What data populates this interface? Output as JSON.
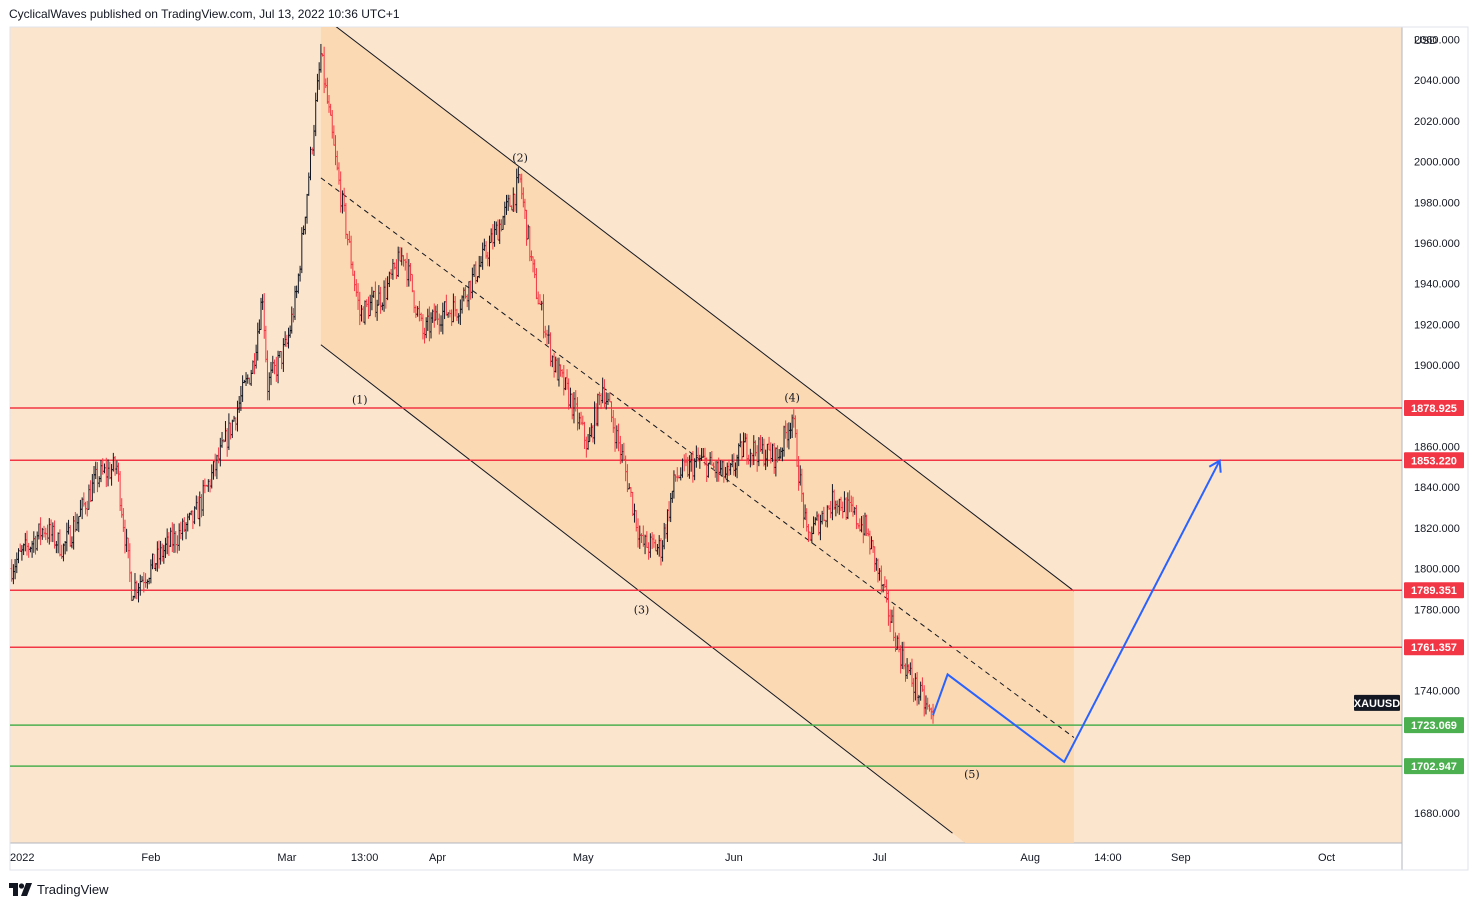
{
  "header": {
    "text": "CyclicalWaves published on TradingView.com, Jul 13, 2022 10:36 UTC+1"
  },
  "footer": {
    "logo_icon": "tradingview-logo-icon",
    "brand": "TradingView"
  },
  "colors": {
    "background": "#fbe5cd",
    "channel_fill": "#fad7ae",
    "resistance": "#f23645",
    "support": "#4caf50",
    "projection": "#2962ff",
    "up_bar": "#131722",
    "down_bar": "#f23645"
  },
  "chart_data": {
    "type": "line",
    "symbol": "XAUUSD",
    "currency_label": "USD",
    "ylim": [
      1670,
      2075
    ],
    "x_tick_labels": [
      "2022",
      "Feb",
      "Mar",
      "13:00",
      "Apr",
      "May",
      "Jun",
      "Jul",
      "Aug",
      "14:00",
      "Sep",
      "Oct"
    ],
    "y_tick_labels": [
      "2060.000",
      "2040.000",
      "2020.000",
      "2000.000",
      "1980.000",
      "1960.000",
      "1940.000",
      "1920.000",
      "1900.000",
      "1860.000",
      "1840.000",
      "1820.000",
      "1800.000",
      "1780.000",
      "1740.000",
      "1680.000"
    ],
    "horizontal_levels": [
      {
        "value": 1878.925,
        "label": "1878.925",
        "kind": "resistance"
      },
      {
        "value": 1853.22,
        "label": "1853.220",
        "kind": "resistance"
      },
      {
        "value": 1789.351,
        "label": "1789.351",
        "kind": "resistance"
      },
      {
        "value": 1761.357,
        "label": "1761.357",
        "kind": "resistance"
      },
      {
        "value": 1723.069,
        "label": "1723.069",
        "kind": "support"
      },
      {
        "value": 1702.947,
        "label": "1702.947",
        "kind": "support"
      }
    ],
    "price_path": {
      "dates": [
        "2022-01-03",
        "2022-01-10",
        "2022-01-14",
        "2022-01-21",
        "2022-01-25",
        "2022-01-28",
        "2022-02-01",
        "2022-02-04",
        "2022-02-10",
        "2022-02-16",
        "2022-02-22",
        "2022-02-24",
        "2022-02-25",
        "2022-03-01",
        "2022-03-03",
        "2022-03-08",
        "2022-03-11",
        "2022-03-16",
        "2022-03-21",
        "2022-03-25",
        "2022-03-29",
        "2022-04-01",
        "2022-04-05",
        "2022-04-11",
        "2022-04-18",
        "2022-04-21",
        "2022-04-25",
        "2022-04-28",
        "2022-05-02",
        "2022-05-05",
        "2022-05-09",
        "2022-05-13",
        "2022-05-17",
        "2022-05-20",
        "2022-05-25",
        "2022-05-31",
        "2022-06-03",
        "2022-06-10",
        "2022-06-13",
        "2022-06-16",
        "2022-06-22",
        "2022-06-28",
        "2022-06-30",
        "2022-07-01",
        "2022-07-05",
        "2022-07-08",
        "2022-07-12"
      ],
      "values": [
        1800,
        1820,
        1810,
        1845,
        1850,
        1790,
        1800,
        1810,
        1825,
        1860,
        1900,
        1935,
        1890,
        1910,
        1935,
        2052,
        2000,
        1925,
        1935,
        1955,
        1915,
        1925,
        1928,
        1955,
        1990,
        1940,
        1900,
        1885,
        1860,
        1890,
        1855,
        1812,
        1810,
        1845,
        1853,
        1845,
        1860,
        1855,
        1875,
        1815,
        1835,
        1820,
        1805,
        1795,
        1760,
        1743,
        1726
      ]
    },
    "projection": {
      "dates": [
        "2022-07-12",
        "2022-07-15",
        "2022-08-08",
        "2022-09-09"
      ],
      "values": [
        1728,
        1748,
        1705,
        1853
      ]
    },
    "channel": {
      "upper": {
        "dates": [
          "2022-03-08",
          "2022-08-10"
        ],
        "values": [
          2072,
          1789
        ]
      },
      "lower": {
        "dates": [
          "2022-03-08",
          "2022-07-16"
        ],
        "values": [
          1910,
          1670
        ]
      },
      "midline": {
        "dates": [
          "2022-03-08",
          "2022-08-10"
        ],
        "values": [
          1992,
          1717
        ]
      }
    },
    "wave_labels": [
      {
        "label": "(1)",
        "date": "2022-03-16",
        "value": 1881
      },
      {
        "label": "(2)",
        "date": "2022-04-18",
        "value": 2000
      },
      {
        "label": "(3)",
        "date": "2022-05-13",
        "value": 1778
      },
      {
        "label": "(4)",
        "date": "2022-06-13",
        "value": 1882
      },
      {
        "label": "(5)",
        "date": "2022-07-20",
        "value": 1697
      }
    ]
  }
}
